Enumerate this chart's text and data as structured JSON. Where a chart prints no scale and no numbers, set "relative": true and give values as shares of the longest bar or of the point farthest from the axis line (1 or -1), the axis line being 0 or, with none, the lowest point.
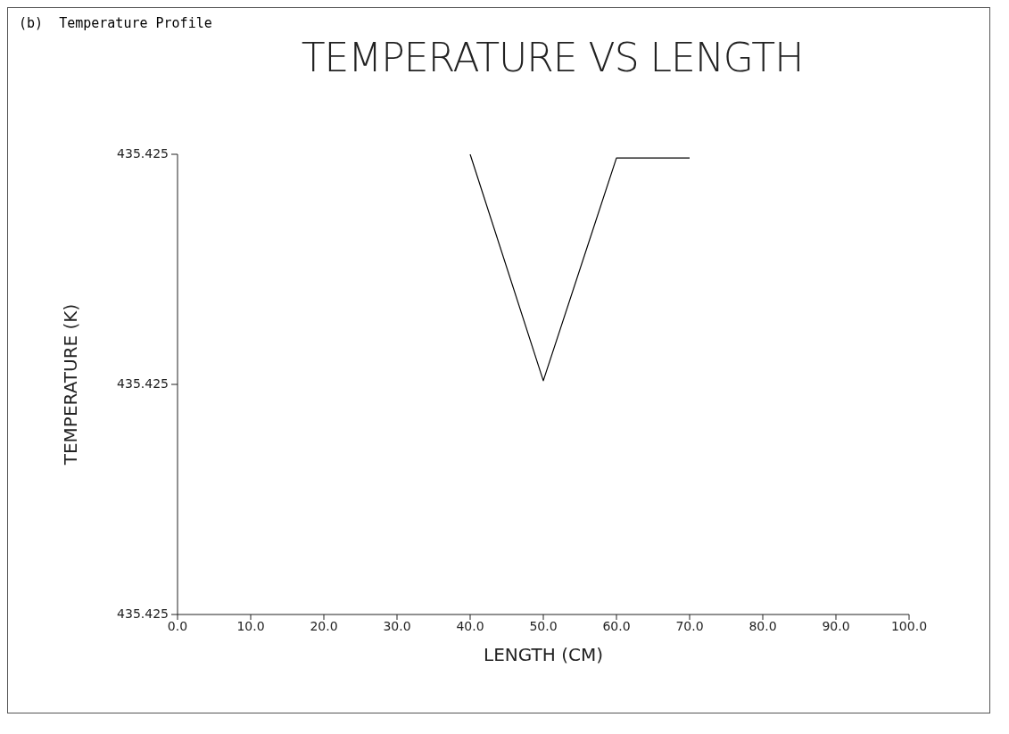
{
  "chart_data": {
    "type": "line",
    "title": "TEMPERATURE VS LENGTH",
    "xlabel": "LENGTH (CM)",
    "ylabel": "TEMPERATURE (K)",
    "annotations": [
      "(b)  Temperature Profile",
      "435.425",
      "435.425",
      "435.425"
    ],
    "x": [
      40,
      50,
      60,
      70
    ],
    "series": [
      {
        "color": "#000000",
        "values": [
          1,
          0.508,
          0.992,
          0.992
        ]
      }
    ],
    "relative": true,
    "xlim": [
      0,
      100
    ],
    "xticks": [
      {
        "value": 0,
        "label": "0.0"
      },
      {
        "value": 10,
        "label": "10.0"
      },
      {
        "value": 20,
        "label": "20.0"
      },
      {
        "value": 30,
        "label": "30.0"
      },
      {
        "value": 40,
        "label": "40.0"
      },
      {
        "value": 50,
        "label": "50.0"
      },
      {
        "value": 60,
        "label": "60.0"
      },
      {
        "value": 70,
        "label": "70.0"
      },
      {
        "value": 80,
        "label": "80.0"
      },
      {
        "value": 90,
        "label": "90.0"
      },
      {
        "value": 100,
        "label": "100.0"
      }
    ],
    "grid": false,
    "legend": false,
    "marker": "none",
    "line_style": "solid"
  }
}
